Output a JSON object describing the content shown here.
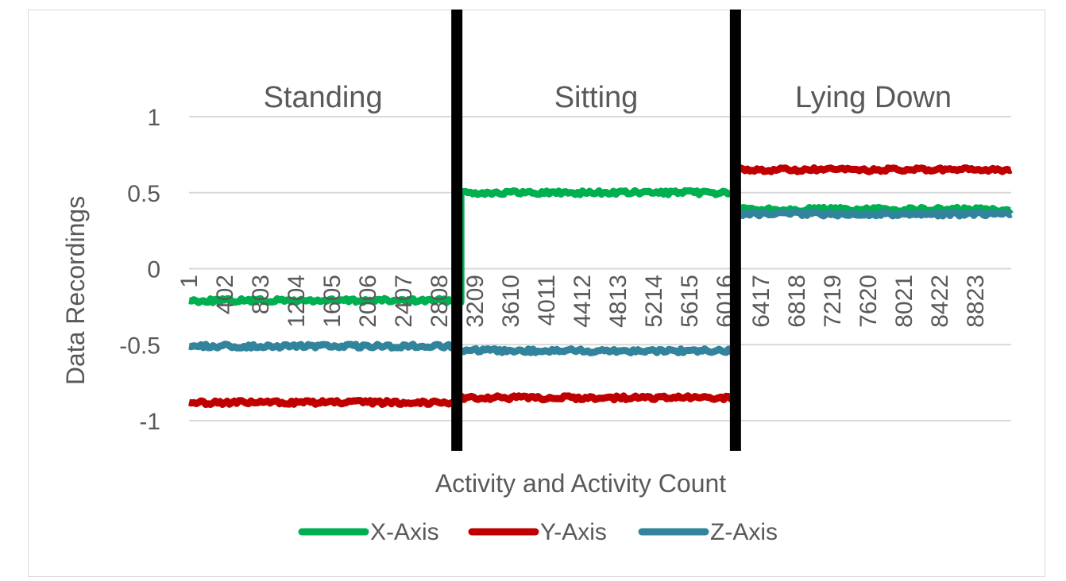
{
  "chart_data": {
    "type": "line",
    "title": "",
    "xlabel": "Activity and Activity Count",
    "ylabel": "Data Recordings",
    "ylim": [
      -1,
      1
    ],
    "y_ticks": [
      "1",
      "0.5",
      "0",
      "-0.5",
      "-1"
    ],
    "y_tick_values": [
      1,
      0.5,
      0,
      -0.5,
      -1
    ],
    "x_range": [
      1,
      9223
    ],
    "x_tick_labels": [
      "1",
      "402",
      "803",
      "1204",
      "1605",
      "2006",
      "2407",
      "2808",
      "3209",
      "3610",
      "4011",
      "4412",
      "4813",
      "5214",
      "5615",
      "6016",
      "6417",
      "6818",
      "7219",
      "7620",
      "8021",
      "8422",
      "8823"
    ],
    "x_tick_values": [
      1,
      402,
      803,
      1204,
      1605,
      2006,
      2407,
      2808,
      3209,
      3610,
      4011,
      4412,
      4813,
      5214,
      5615,
      6016,
      6417,
      6818,
      7219,
      7620,
      8021,
      8422,
      8823
    ],
    "gridlines": true,
    "legend_position": "bottom",
    "activities": [
      {
        "label": "Standing",
        "x_start": 1,
        "x_end": 3005
      },
      {
        "label": "Sitting",
        "x_start": 3005,
        "x_end": 6130
      },
      {
        "label": "Lying Down",
        "x_start": 6130,
        "x_end": 9223
      }
    ],
    "series": [
      {
        "name": "X-Axis",
        "color": "#00b050",
        "segments": [
          {
            "x": [
              1,
              3050
            ],
            "y": -0.21
          },
          {
            "x": [
              3050,
              6130
            ],
            "y": 0.5
          },
          {
            "x": [
              6130,
              9223
            ],
            "y": 0.39
          }
        ]
      },
      {
        "name": "Y-Axis",
        "color": "#c00000",
        "segments": [
          {
            "x": [
              1,
              3005
            ],
            "y": -0.88
          },
          {
            "x": [
              3005,
              6130
            ],
            "y": -0.85
          },
          {
            "x": [
              6130,
              9223
            ],
            "y": 0.65
          }
        ]
      },
      {
        "name": "Z-Axis",
        "color": "#31849b",
        "segments": [
          {
            "x": [
              1,
              3005
            ],
            "y": -0.51
          },
          {
            "x": [
              3005,
              6130
            ],
            "y": -0.54
          },
          {
            "x": [
              6130,
              9223
            ],
            "y": 0.36
          }
        ]
      }
    ]
  }
}
